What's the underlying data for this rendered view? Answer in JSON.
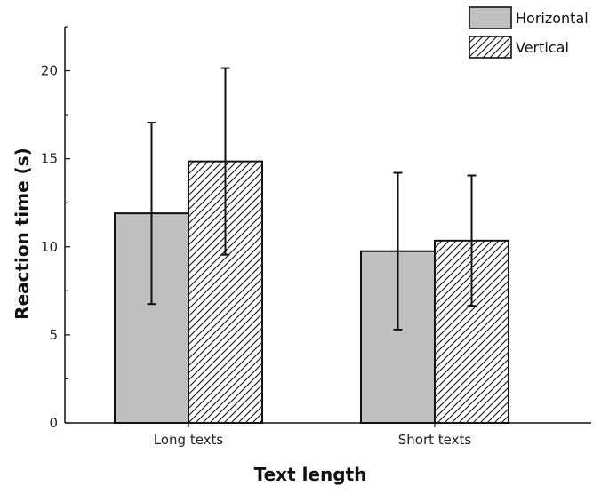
{
  "chart_data": {
    "type": "bar",
    "title": "",
    "xlabel": "Text length",
    "ylabel": "Reaction time (s)",
    "categories": [
      "Long texts",
      "Short texts"
    ],
    "ylim": [
      0,
      22.5
    ],
    "yticks": [
      0,
      5,
      10,
      15,
      20
    ],
    "ytick_labels": [
      "0",
      "5",
      "10",
      "15",
      "20"
    ],
    "grid": false,
    "legend_position": "top-right",
    "series": [
      {
        "name": "Horizontal",
        "values": [
          11.9,
          9.75
        ],
        "errors": [
          5.15,
          4.45
        ],
        "fill": "#c0c0c0",
        "pattern": "solid"
      },
      {
        "name": "Vertical",
        "values": [
          14.85,
          10.35
        ],
        "errors": [
          5.3,
          3.7
        ],
        "fill": "#ffffff",
        "pattern": "diagonal-hatch"
      }
    ]
  }
}
